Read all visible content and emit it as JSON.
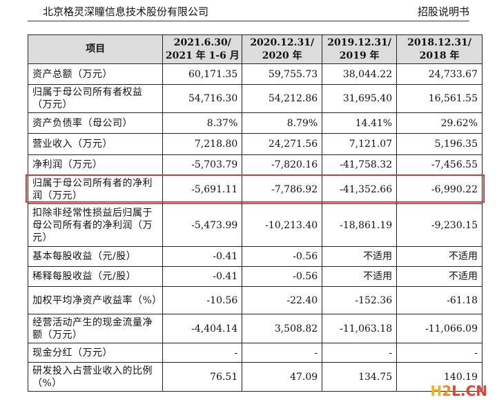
{
  "header": {
    "company": "北京格灵深瞳信息技术股份有限公司",
    "doc_type": "招股说明书"
  },
  "table": {
    "columns": [
      "项目",
      "2021.6.30/\n2021 年 1-6 月",
      "2020.12.31/\n2020 年",
      "2019.12.31/\n2019 年",
      "2018.12.31/\n2018 年"
    ],
    "rows": [
      {
        "item": "资产总额（万元）",
        "values": [
          "60,171.35",
          "59,755.73",
          "38,044.22",
          "24,733.67"
        ]
      },
      {
        "item": "归属于母公司所有者权益（万元）",
        "values": [
          "54,716.30",
          "54,212.86",
          "31,695.40",
          "16,561.55"
        ]
      },
      {
        "item": "资产负债率（母公司）",
        "values": [
          "8.37%",
          "8.79%",
          "14.41%",
          "29.62%"
        ]
      },
      {
        "item": "营业收入（万元）",
        "values": [
          "7,218.80",
          "24,271.56",
          "7,121.07",
          "5,196.35"
        ]
      },
      {
        "item": "净利润（万元）",
        "values": [
          "-5,703.79",
          "-7,820.16",
          "-41,758.32",
          "-7,456.55"
        ]
      },
      {
        "item": "归属于母公司所有者的净利润（万元）",
        "values": [
          "-5,691.11",
          "-7,786.92",
          "-41,352.66",
          "-6,990.22"
        ]
      },
      {
        "item": "扣除非经常性损益后归属于母公司所有者的净利润（万元）",
        "values": [
          "-5,473.99",
          "-10,213.40",
          "-18,861.19",
          "-9,230.15"
        ]
      },
      {
        "item": "基本每股收益（元/股）",
        "values": [
          "-0.41",
          "-0.56",
          "不适用",
          "不适用"
        ]
      },
      {
        "item": "稀释每股收益（元/股）",
        "values": [
          "-0.41",
          "-0.56",
          "不适用",
          "不适用"
        ]
      },
      {
        "item": "加权平均净资产收益率（%）",
        "values": [
          "-10.56",
          "-22.40",
          "-152.36",
          "-61.18"
        ]
      },
      {
        "item": "经营活动产生的现金流量净额（万元）",
        "values": [
          "-4,404.14",
          "3,508.82",
          "-11,063.18",
          "-11,066.09"
        ]
      },
      {
        "item": "现金分红（万元）",
        "values": [
          "-",
          "-",
          "-",
          "-"
        ]
      },
      {
        "item": "研发投入占营业收入的比例（%）",
        "values": [
          "76.51",
          "47.09",
          "134.75",
          "140.19"
        ]
      }
    ],
    "highlight_color": "#d9343a"
  },
  "watermark": {
    "h": "H",
    "two": "2",
    "l": "L",
    "dot": ".",
    "cn": "CN"
  }
}
